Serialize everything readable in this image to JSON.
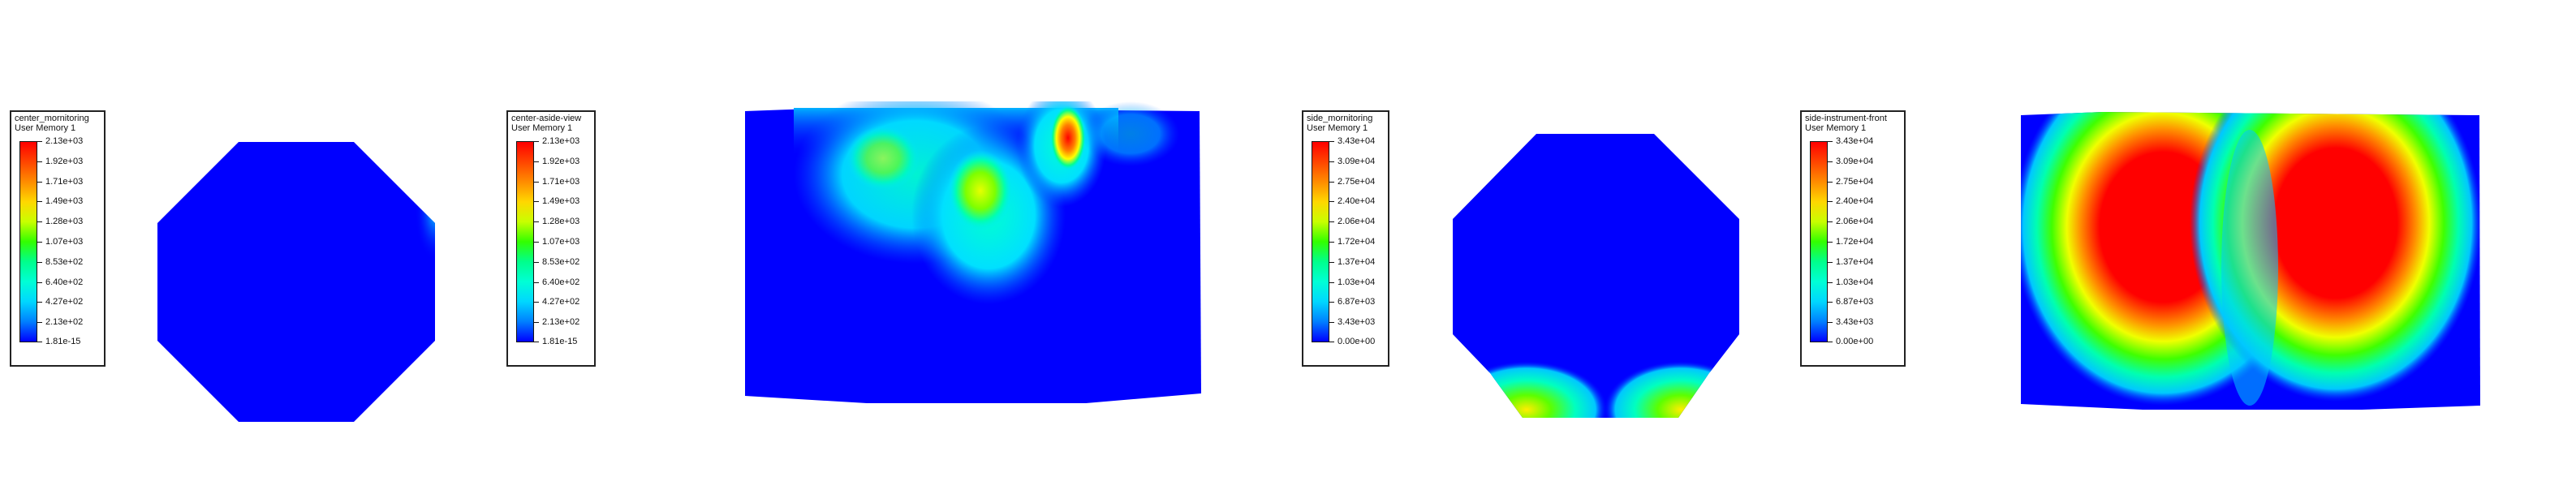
{
  "panels": [
    {
      "legend": {
        "title": "center_mornitoring",
        "subtitle": "User Memory 1",
        "labels": [
          "2.13e+03",
          "1.92e+03",
          "1.71e+03",
          "1.49e+03",
          "1.28e+03",
          "1.07e+03",
          "8.53e+02",
          "6.40e+02",
          "4.27e+02",
          "2.13e+02",
          "1.81e-15"
        ]
      }
    },
    {
      "legend": {
        "title": "center-aside-view",
        "subtitle": "User Memory 1",
        "labels": [
          "2.13e+03",
          "1.92e+03",
          "1.71e+03",
          "1.49e+03",
          "1.28e+03",
          "1.07e+03",
          "8.53e+02",
          "6.40e+02",
          "4.27e+02",
          "2.13e+02",
          "1.81e-15"
        ]
      }
    },
    {
      "legend": {
        "title": "side_mornitoring",
        "subtitle": "User Memory 1",
        "labels": [
          "3.43e+04",
          "3.09e+04",
          "2.75e+04",
          "2.40e+04",
          "2.06e+04",
          "1.72e+04",
          "1.37e+04",
          "1.03e+04",
          "6.87e+03",
          "3.43e+03",
          "0.00e+00"
        ]
      }
    },
    {
      "legend": {
        "title": "side-instrument-front",
        "subtitle": "User Memory 1",
        "labels": [
          "3.43e+04",
          "3.09e+04",
          "2.75e+04",
          "2.40e+04",
          "2.06e+04",
          "1.72e+04",
          "1.37e+04",
          "1.03e+04",
          "6.87e+03",
          "3.43e+03",
          "0.00e+00"
        ]
      }
    }
  ],
  "colors": {
    "background": "#ffffff",
    "field_low": "#0000ff",
    "cyan": "#00e5ff",
    "teal": "#00ffb0",
    "green": "#33ff00",
    "yellow": "#d6ff00",
    "red": "#ff0000"
  }
}
